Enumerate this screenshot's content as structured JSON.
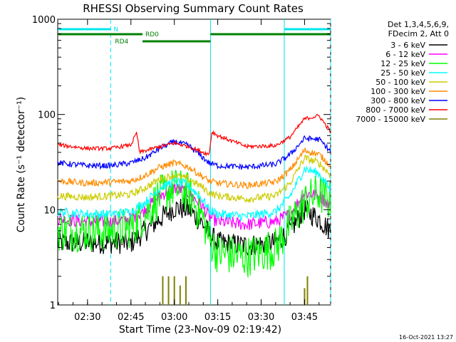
{
  "chart_data": {
    "type": "line",
    "title": "RHESSI Observing Summary Count Rates",
    "xlabel": "Start Time (23-Nov-09 02:19:42)",
    "ylabel": "Count Rate (s⁻¹ detector⁻¹)",
    "ylog": true,
    "ylim": [
      1,
      1000
    ],
    "xlim": [
      "02:19:42",
      "03:54:00"
    ],
    "x_ticks": [
      "02:30",
      "02:45",
      "03:00",
      "03:15",
      "03:30",
      "03:45"
    ],
    "y_ticks": [
      "1",
      "10",
      "100",
      "1000"
    ],
    "legend_title": [
      "Det 1,3,4,5,6,9,",
      "FDecim 2, Att 0"
    ],
    "legend_position": "right",
    "timestamp": "16-Oct-2021 13:27",
    "flags": [
      {
        "label": "N",
        "color": "#00e5ee",
        "segments": [
          [
            "02:19:42",
            "02:38:00"
          ],
          [
            "03:38:00",
            "03:54:00"
          ]
        ]
      },
      {
        "label": "RD0",
        "color": "#008000",
        "segments": [
          [
            "02:19:42",
            "02:49:00"
          ],
          [
            "03:12:30",
            "03:54:00"
          ]
        ]
      },
      {
        "label": "RD4",
        "color": "#008000",
        "segments": [
          [
            "02:49:00",
            "03:12:30"
          ]
        ]
      }
    ],
    "markers": [
      {
        "time": "02:38:00",
        "color": "#00e5ee",
        "style": "dashed"
      },
      {
        "time": "03:12:30",
        "color": "#00e5ee",
        "style": "solid"
      },
      {
        "time": "03:38:00",
        "color": "#00e5ee",
        "style": "solid"
      },
      {
        "time": "03:54:00",
        "color": "#00e5ee",
        "style": "dashed"
      }
    ],
    "series": [
      {
        "name": "3 - 6 keV",
        "color": "#000000",
        "noise": 0.12,
        "points": [
          [
            "02:19:42",
            4.5
          ],
          [
            "02:30",
            4.5
          ],
          [
            "02:38",
            4.5
          ],
          [
            "02:45",
            4.5
          ],
          [
            "02:50",
            6
          ],
          [
            "02:55",
            8
          ],
          [
            "03:00",
            10.5
          ],
          [
            "03:05",
            10
          ],
          [
            "03:10",
            7
          ],
          [
            "03:12",
            5.5
          ],
          [
            "03:15",
            4.5
          ],
          [
            "03:25",
            4.2
          ],
          [
            "03:35",
            4.5
          ],
          [
            "03:40",
            6
          ],
          [
            "03:45",
            10
          ],
          [
            "03:50",
            8
          ],
          [
            "03:54",
            6
          ]
        ]
      },
      {
        "name": "6 - 12 keV",
        "color": "#ff00ff",
        "noise": 0.07,
        "points": [
          [
            "02:19:42",
            8
          ],
          [
            "02:30",
            7.5
          ],
          [
            "02:38",
            7.5
          ],
          [
            "02:45",
            8
          ],
          [
            "02:50",
            10
          ],
          [
            "02:55",
            14
          ],
          [
            "03:00",
            17
          ],
          [
            "03:05",
            15
          ],
          [
            "03:10",
            10.5
          ],
          [
            "03:12",
            8.5
          ],
          [
            "03:15",
            7.5
          ],
          [
            "03:25",
            7
          ],
          [
            "03:35",
            7.5
          ],
          [
            "03:40",
            9
          ],
          [
            "03:45",
            15
          ],
          [
            "03:50",
            14
          ],
          [
            "03:54",
            11
          ]
        ]
      },
      {
        "name": "12 - 25 keV",
        "color": "#00ff00",
        "noise": 0.22,
        "points": [
          [
            "02:19:42",
            6
          ],
          [
            "02:30",
            6
          ],
          [
            "02:38",
            6
          ],
          [
            "02:45",
            6.5
          ],
          [
            "02:50",
            9
          ],
          [
            "02:55",
            14
          ],
          [
            "03:00",
            17
          ],
          [
            "03:05",
            15
          ],
          [
            "03:10",
            8
          ],
          [
            "03:12",
            5
          ],
          [
            "03:15",
            3.5
          ],
          [
            "03:25",
            3.2
          ],
          [
            "03:35",
            4
          ],
          [
            "03:40",
            7
          ],
          [
            "03:45",
            12
          ],
          [
            "03:50",
            15
          ],
          [
            "03:54",
            12
          ]
        ]
      },
      {
        "name": "25 - 50 keV",
        "color": "#00ffff",
        "noise": 0.05,
        "points": [
          [
            "02:19:42",
            9.5
          ],
          [
            "02:30",
            9
          ],
          [
            "02:38",
            9
          ],
          [
            "02:45",
            9.5
          ],
          [
            "02:50",
            12
          ],
          [
            "02:55",
            17
          ],
          [
            "03:00",
            20
          ],
          [
            "03:05",
            18
          ],
          [
            "03:10",
            12.5
          ],
          [
            "03:12",
            10
          ],
          [
            "03:15",
            9
          ],
          [
            "03:25",
            8.5
          ],
          [
            "03:35",
            9.5
          ],
          [
            "03:40",
            14
          ],
          [
            "03:45",
            27
          ],
          [
            "03:50",
            24
          ],
          [
            "03:54",
            16
          ]
        ]
      },
      {
        "name": "50 - 100 keV",
        "color": "#cccc00",
        "noise": 0.04,
        "points": [
          [
            "02:19:42",
            14
          ],
          [
            "02:30",
            13.5
          ],
          [
            "02:38",
            14
          ],
          [
            "02:45",
            14.5
          ],
          [
            "02:50",
            17
          ],
          [
            "02:55",
            21
          ],
          [
            "03:00",
            23
          ],
          [
            "03:05",
            21
          ],
          [
            "03:10",
            17
          ],
          [
            "03:12",
            15
          ],
          [
            "03:15",
            14
          ],
          [
            "03:25",
            13
          ],
          [
            "03:35",
            14
          ],
          [
            "03:40",
            19
          ],
          [
            "03:45",
            35
          ],
          [
            "03:50",
            31
          ],
          [
            "03:54",
            23
          ]
        ]
      },
      {
        "name": "100 - 300 keV",
        "color": "#ff8c00",
        "noise": 0.035,
        "points": [
          [
            "02:19:42",
            20
          ],
          [
            "02:30",
            19
          ],
          [
            "02:38",
            19.5
          ],
          [
            "02:45",
            20
          ],
          [
            "02:50",
            23
          ],
          [
            "02:55",
            28
          ],
          [
            "03:00",
            31
          ],
          [
            "03:05",
            28
          ],
          [
            "03:10",
            22
          ],
          [
            "03:12",
            20
          ],
          [
            "03:15",
            19
          ],
          [
            "03:25",
            18
          ],
          [
            "03:35",
            19.5
          ],
          [
            "03:40",
            26
          ],
          [
            "03:45",
            42
          ],
          [
            "03:50",
            38
          ],
          [
            "03:54",
            29
          ]
        ]
      },
      {
        "name": "300 - 800 keV",
        "color": "#0000ff",
        "noise": 0.03,
        "points": [
          [
            "02:19:42",
            31
          ],
          [
            "02:30",
            29
          ],
          [
            "02:38",
            29
          ],
          [
            "02:45",
            31
          ],
          [
            "02:50",
            35
          ],
          [
            "02:55",
            44
          ],
          [
            "03:00",
            52
          ],
          [
            "03:05",
            47
          ],
          [
            "03:10",
            35
          ],
          [
            "03:12",
            31
          ],
          [
            "03:15",
            29
          ],
          [
            "03:25",
            28
          ],
          [
            "03:35",
            30
          ],
          [
            "03:40",
            38
          ],
          [
            "03:45",
            56
          ],
          [
            "03:50",
            55
          ],
          [
            "03:54",
            41
          ]
        ]
      },
      {
        "name": "800 - 7000 keV",
        "color": "#ff0000",
        "noise": 0.02,
        "points": [
          [
            "02:19:42",
            48
          ],
          [
            "02:30",
            44
          ],
          [
            "02:38",
            44
          ],
          [
            "02:45",
            48
          ],
          [
            "02:47",
            64
          ],
          [
            "02:48",
            40
          ],
          [
            "02:55",
            46
          ],
          [
            "03:00",
            50
          ],
          [
            "03:05",
            46
          ],
          [
            "03:10",
            40
          ],
          [
            "03:12",
            38
          ],
          [
            "03:13",
            66
          ],
          [
            "03:15",
            60
          ],
          [
            "03:25",
            46
          ],
          [
            "03:35",
            47
          ],
          [
            "03:40",
            58
          ],
          [
            "03:45",
            90
          ],
          [
            "03:50",
            97
          ],
          [
            "03:54",
            66
          ]
        ]
      },
      {
        "name": "7000 - 15000 keV",
        "color": "#808000",
        "noise": 0,
        "points": [],
        "spikes": [
          [
            "02:56",
            2
          ],
          [
            "02:58",
            2
          ],
          [
            "03:00",
            2
          ],
          [
            "03:02",
            1.6
          ],
          [
            "03:04",
            2
          ],
          [
            "03:45",
            1.5
          ],
          [
            "03:46",
            2
          ]
        ]
      }
    ]
  }
}
